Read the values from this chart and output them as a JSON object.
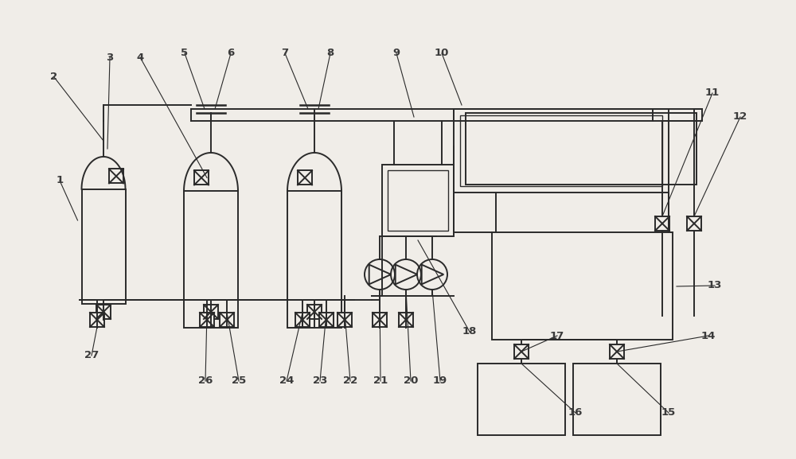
{
  "bg_color": "#f0ede8",
  "line_color": "#2a2a2a",
  "label_color": "#3a3a3a",
  "fig_w": 10.0,
  "fig_h": 5.77,
  "dpi": 100
}
